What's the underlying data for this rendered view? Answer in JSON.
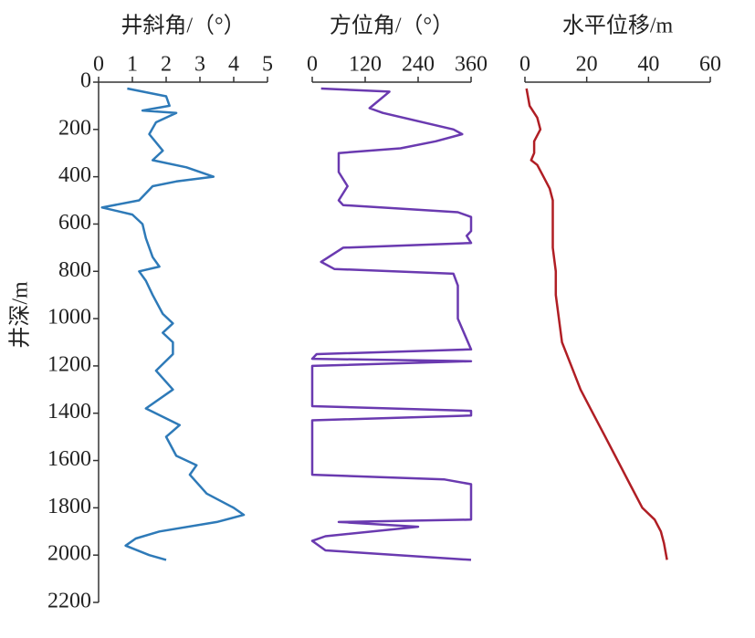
{
  "chart_data": [
    {
      "type": "line",
      "title": "井斜角/（°）",
      "color": "#2e7ab8",
      "xlim": [
        0,
        5
      ],
      "xticks": [
        0,
        1,
        2,
        3,
        4,
        5
      ],
      "ylim": [
        0,
        2200
      ],
      "yticks": [
        0,
        200,
        400,
        600,
        800,
        1000,
        1200,
        1400,
        1600,
        1800,
        2000,
        2200
      ],
      "ylabel": "井深/m",
      "depth": [
        27,
        60,
        100,
        120,
        130,
        170,
        220,
        290,
        330,
        360,
        400,
        420,
        440,
        500,
        530,
        560,
        600,
        660,
        740,
        780,
        800,
        840,
        900,
        980,
        1020,
        1060,
        1100,
        1150,
        1220,
        1300,
        1380,
        1450,
        1500,
        1580,
        1620,
        1660,
        1740,
        1800,
        1830,
        1860,
        1900,
        1930,
        1960,
        2000,
        2020
      ],
      "values": [
        0.85,
        2.0,
        2.1,
        1.3,
        2.3,
        1.7,
        1.5,
        1.9,
        1.6,
        2.6,
        3.4,
        2.3,
        1.6,
        1.2,
        0.1,
        1.0,
        1.3,
        1.4,
        1.6,
        1.8,
        1.2,
        1.4,
        1.6,
        1.9,
        2.2,
        1.9,
        2.2,
        2.2,
        1.7,
        2.2,
        1.4,
        2.4,
        2.0,
        2.3,
        2.9,
        2.7,
        3.2,
        4.0,
        4.3,
        3.5,
        1.8,
        1.1,
        0.8,
        1.5,
        2.0
      ]
    },
    {
      "type": "line",
      "title": "方位角/（°）",
      "color": "#6a3ab0",
      "xlim": [
        0,
        360
      ],
      "xticks": [
        0,
        120,
        240,
        360
      ],
      "depth": [
        27,
        40,
        110,
        130,
        200,
        220,
        250,
        280,
        300,
        380,
        440,
        500,
        520,
        550,
        570,
        630,
        650,
        680,
        700,
        760,
        790,
        810,
        860,
        1000,
        1130,
        1150,
        1170,
        1180,
        1200,
        1370,
        1390,
        1410,
        1430,
        1660,
        1680,
        1700,
        1850,
        1860,
        1880,
        1920,
        1940,
        1980,
        2020
      ],
      "values": [
        20,
        175,
        130,
        160,
        320,
        340,
        280,
        200,
        60,
        60,
        80,
        60,
        70,
        330,
        360,
        360,
        350,
        360,
        70,
        20,
        50,
        320,
        330,
        330,
        360,
        10,
        0,
        360,
        0,
        0,
        360,
        360,
        0,
        0,
        300,
        360,
        360,
        60,
        240,
        30,
        0,
        30,
        360
      ]
    },
    {
      "type": "line",
      "title": "水平位移/m",
      "color": "#b01e24",
      "xlim": [
        0,
        60
      ],
      "xticks": [
        0,
        20,
        40,
        60
      ],
      "depth": [
        27,
        100,
        150,
        200,
        250,
        300,
        330,
        350,
        400,
        450,
        500,
        600,
        700,
        800,
        900,
        1000,
        1100,
        1200,
        1300,
        1400,
        1500,
        1600,
        1700,
        1800,
        1850,
        1900,
        1950,
        2020
      ],
      "values": [
        0.5,
        1.5,
        4,
        5,
        3,
        3,
        2,
        4,
        6,
        8,
        9,
        9,
        9,
        10,
        10,
        11,
        12,
        15,
        18,
        22,
        26,
        30,
        34,
        38,
        42,
        44,
        45,
        46
      ]
    }
  ]
}
